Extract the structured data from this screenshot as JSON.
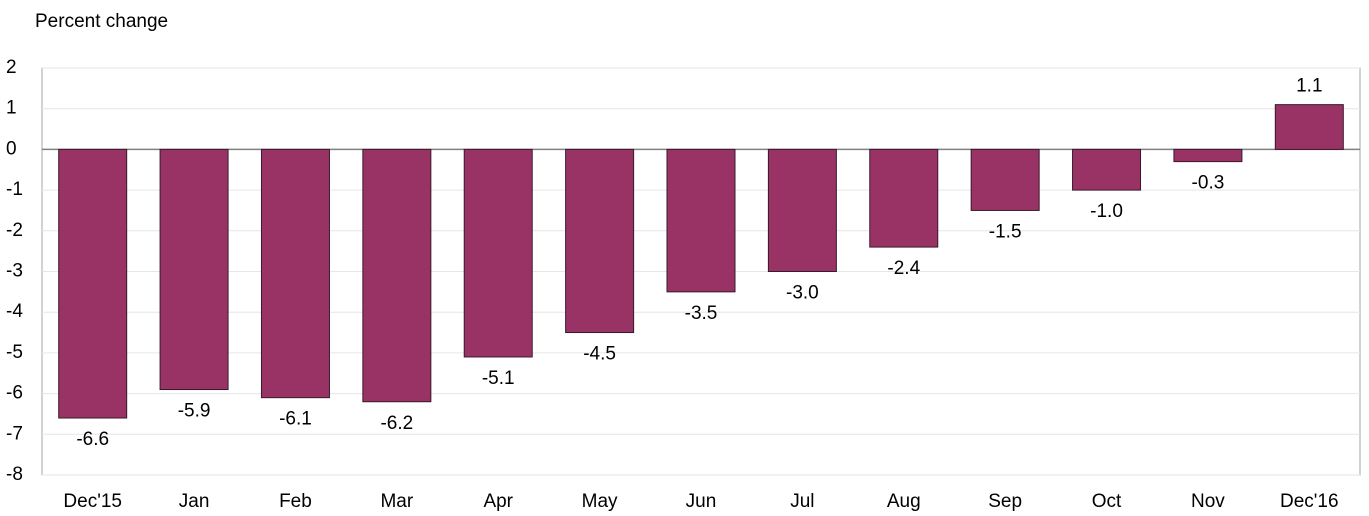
{
  "chart_data": {
    "type": "bar",
    "subtitle": "Percent change",
    "categories": [
      "Dec'15",
      "Jan",
      "Feb",
      "Mar",
      "Apr",
      "May",
      "Jun",
      "Jul",
      "Aug",
      "Sep",
      "Oct",
      "Nov",
      "Dec'16"
    ],
    "values": [
      -6.6,
      -5.9,
      -6.1,
      -6.2,
      -5.1,
      -4.5,
      -3.5,
      -3.0,
      -2.4,
      -1.5,
      -1.0,
      -0.3,
      1.1
    ],
    "value_labels": [
      "-6.6",
      "-5.9",
      "-6.1",
      "-6.2",
      "-5.1",
      "-4.5",
      "-3.5",
      "-3.0",
      "-2.4",
      "-1.5",
      "-1.0",
      "-0.3",
      "1.1"
    ],
    "color": "#993366",
    "ylim": [
      -8,
      2
    ],
    "yticks": [
      -8,
      -7,
      -6,
      -5,
      -4,
      -3,
      -2,
      -1,
      0,
      1,
      2
    ],
    "grid": true
  }
}
